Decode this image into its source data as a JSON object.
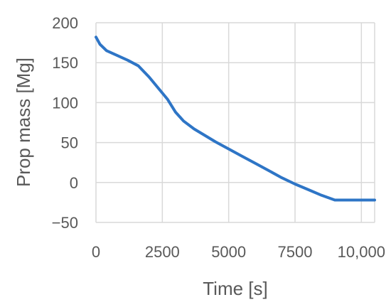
{
  "chart_data": {
    "type": "line",
    "title": "",
    "xlabel": "Time [s]",
    "ylabel": "Prop mass [Mg]",
    "xlim": [
      0,
      10500
    ],
    "ylim": [
      -50,
      200
    ],
    "x_ticks": [
      0,
      2500,
      5000,
      7500,
      10000
    ],
    "x_tick_labels": [
      "0",
      "2500",
      "5000",
      "7500",
      "10,000"
    ],
    "y_ticks": [
      -50,
      0,
      50,
      100,
      150,
      200
    ],
    "y_tick_labels": [
      "−50",
      "0",
      "50",
      "100",
      "150",
      "200"
    ],
    "grid": {
      "x": true,
      "y": true
    },
    "colors": {
      "series": "#2e75c6",
      "grid": "#d9d9d9",
      "text": "#595959"
    },
    "series": [
      {
        "x": [
          0,
          150,
          400,
          800,
          1200,
          1600,
          2000,
          2400,
          2700,
          3000,
          3300,
          3700,
          4100,
          4500,
          5000,
          5500,
          6000,
          6500,
          7000,
          7500,
          8000,
          8500,
          9000,
          9500,
          10000,
          10500
        ],
        "y": [
          182,
          173,
          165,
          159,
          153,
          146,
          132,
          116,
          104,
          88,
          77,
          67,
          59,
          51,
          42,
          33,
          24,
          15,
          6,
          -2,
          -9,
          -16,
          -22,
          -22,
          -22,
          -22
        ]
      }
    ]
  }
}
